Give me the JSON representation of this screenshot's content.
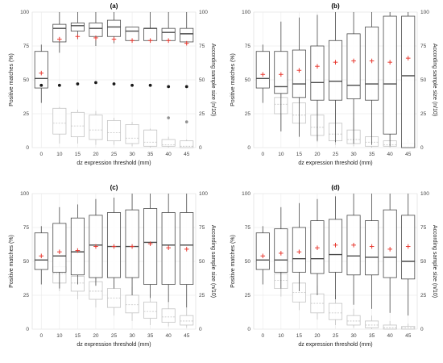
{
  "chart_data": [
    {
      "type": "boxplot",
      "title": "(a)",
      "xlabel": "dz expression threshold (mm)",
      "ylabel": "Positive matches (%)",
      "ylabel_right": "According sample size (n/10)",
      "categories": [
        "0",
        "10",
        "15",
        "20",
        "25",
        "30",
        "35",
        "40",
        "45"
      ],
      "ylim": [
        0,
        100
      ],
      "yticks": [
        "0",
        "25",
        "50",
        "75",
        "100"
      ],
      "grid": true,
      "matches": [
        {
          "q1": 44,
          "median": 51,
          "q3": 71,
          "lo": 33,
          "hi": 76,
          "mean": 55
        },
        {
          "q1": 78,
          "median": 88,
          "q3": 91,
          "lo": 70,
          "hi": 100,
          "mean": 80
        },
        {
          "q1": 86,
          "median": 90,
          "q3": 92,
          "lo": 80,
          "hi": 100,
          "mean": 82
        },
        {
          "q1": 82,
          "median": 88,
          "q3": 92,
          "lo": 75,
          "hi": 100,
          "mean": 81
        },
        {
          "q1": 82,
          "median": 89,
          "q3": 94,
          "lo": 77,
          "hi": 100,
          "mean": 80
        },
        {
          "q1": 79,
          "median": 86,
          "q3": 89,
          "lo": 79,
          "hi": 89,
          "mean": 79
        },
        {
          "q1": 79,
          "median": 88,
          "q3": 88,
          "lo": 79,
          "hi": 100,
          "mean": 79
        },
        {
          "q1": 79,
          "median": 85,
          "q3": 88,
          "lo": 79,
          "hi": 100,
          "mean": 79
        },
        {
          "q1": 78,
          "median": 84,
          "q3": 88,
          "lo": 78,
          "hi": 100,
          "mean": 77
        }
      ],
      "sample_size": [
        {
          "q1": null,
          "median": null,
          "q3": null,
          "lo": null,
          "hi": null,
          "point": 46
        },
        {
          "q1": 10,
          "median": 18,
          "q3": 29,
          "lo": 3,
          "hi": 30,
          "point": 46
        },
        {
          "q1": 8,
          "median": 16,
          "q3": 26,
          "lo": 3,
          "hi": 28,
          "point": 47
        },
        {
          "q1": 6,
          "median": 13,
          "q3": 24,
          "lo": 2,
          "hi": 27,
          "point": 48
        },
        {
          "q1": 5,
          "median": 11,
          "q3": 20,
          "lo": 2,
          "hi": 22,
          "point": 47
        },
        {
          "q1": 3,
          "median": 7,
          "q3": 17,
          "lo": 1,
          "hi": 19,
          "point": 46
        },
        {
          "q1": 1,
          "median": 4,
          "q3": 13,
          "lo": 0,
          "hi": 14,
          "point": 46
        },
        {
          "q1": 1,
          "median": 2,
          "q3": 6,
          "lo": 0,
          "hi": 8,
          "point": 45,
          "outlier": 22
        },
        {
          "q1": 0,
          "median": 1,
          "q3": 5,
          "lo": 0,
          "hi": 6,
          "point": 45,
          "outlier": 19
        }
      ]
    },
    {
      "type": "boxplot",
      "title": "(b)",
      "xlabel": "dz expression threshold (mm)",
      "ylabel": "Positive matches (%)",
      "ylabel_right": "According sample size (n/10)",
      "categories": [
        "0",
        "10",
        "15",
        "20",
        "25",
        "30",
        "35",
        "40",
        "45"
      ],
      "ylim": [
        0,
        100
      ],
      "yticks": [
        "0",
        "25",
        "50",
        "75",
        "100"
      ],
      "grid": true,
      "matches": [
        {
          "q1": 44,
          "median": 51,
          "q3": 71,
          "lo": 33,
          "hi": 76,
          "mean": 54
        },
        {
          "q1": 40,
          "median": 45,
          "q3": 71,
          "lo": 12,
          "hi": 93,
          "mean": 54
        },
        {
          "q1": 37,
          "median": 47,
          "q3": 72,
          "lo": 8,
          "hi": 96,
          "mean": 57
        },
        {
          "q1": 35,
          "median": 48,
          "q3": 75,
          "lo": 5,
          "hi": 98,
          "mean": 60
        },
        {
          "q1": 35,
          "median": 49,
          "q3": 79,
          "lo": 4,
          "hi": 100,
          "mean": 63
        },
        {
          "q1": 36,
          "median": 46,
          "q3": 84,
          "lo": 3,
          "hi": 100,
          "mean": 64
        },
        {
          "q1": 35,
          "median": 47,
          "q3": 89,
          "lo": 2,
          "hi": 100,
          "mean": 64
        },
        {
          "q1": 10,
          "median": 47,
          "q3": 97,
          "lo": 1,
          "hi": 100,
          "mean": 63
        },
        {
          "q1": 0,
          "median": 53,
          "q3": 97,
          "lo": 0,
          "hi": 100,
          "mean": 66
        }
      ],
      "sample_size": [
        {
          "q1": null,
          "median": null,
          "q3": null,
          "lo": null,
          "hi": null
        },
        {
          "q1": 25,
          "median": 32,
          "q3": 37,
          "lo": 12,
          "hi": 45
        },
        {
          "q1": 18,
          "median": 24,
          "q3": 33,
          "lo": 8,
          "hi": 40
        },
        {
          "q1": 9,
          "median": 15,
          "q3": 24,
          "lo": 4,
          "hi": 33
        },
        {
          "q1": 5,
          "median": 10,
          "q3": 18,
          "lo": 2,
          "hi": 28
        },
        {
          "q1": 3,
          "median": 6,
          "q3": 13,
          "lo": 1,
          "hi": 22
        },
        {
          "q1": 1,
          "median": 4,
          "q3": 8,
          "lo": 0,
          "hi": 18
        },
        {
          "q1": 1,
          "median": 2,
          "q3": 5,
          "lo": 0,
          "hi": 10
        },
        {
          "q1": 0,
          "median": 1,
          "q3": 3,
          "lo": 0,
          "hi": 6
        }
      ]
    },
    {
      "type": "boxplot",
      "title": "(c)",
      "xlabel": "dz expression threshold (mm)",
      "ylabel": "Positive matches (%)",
      "ylabel_right": "According sample size (n/10)",
      "categories": [
        "0",
        "10",
        "15",
        "20",
        "25",
        "30",
        "35",
        "40",
        "45"
      ],
      "ylim": [
        0,
        100
      ],
      "yticks": [
        "0",
        "25",
        "50",
        "75",
        "100"
      ],
      "grid": true,
      "matches": [
        {
          "q1": 44,
          "median": 51,
          "q3": 71,
          "lo": 33,
          "hi": 76,
          "mean": 54
        },
        {
          "q1": 42,
          "median": 54,
          "q3": 78,
          "lo": 30,
          "hi": 90,
          "mean": 57
        },
        {
          "q1": 40,
          "median": 57,
          "q3": 82,
          "lo": 33,
          "hi": 92,
          "mean": 58
        },
        {
          "q1": 38,
          "median": 62,
          "q3": 84,
          "lo": 32,
          "hi": 96,
          "mean": 61
        },
        {
          "q1": 38,
          "median": 61,
          "q3": 86,
          "lo": 30,
          "hi": 97,
          "mean": 61
        },
        {
          "q1": 38,
          "median": 61,
          "q3": 88,
          "lo": 25,
          "hi": 100,
          "mean": 61
        },
        {
          "q1": 33,
          "median": 64,
          "q3": 89,
          "lo": 23,
          "hi": 100,
          "mean": 63
        },
        {
          "q1": 33,
          "median": 62,
          "q3": 86,
          "lo": 20,
          "hi": 100,
          "mean": 60
        },
        {
          "q1": 33,
          "median": 62,
          "q3": 86,
          "lo": 16,
          "hi": 100,
          "mean": 59
        }
      ],
      "sample_size": [
        {
          "q1": null,
          "median": null,
          "q3": null,
          "lo": null,
          "hi": null
        },
        {
          "q1": 34,
          "median": 41,
          "q3": 46,
          "lo": 28,
          "hi": 50
        },
        {
          "q1": 28,
          "median": 34,
          "q3": 39,
          "lo": 22,
          "hi": 43
        },
        {
          "q1": 22,
          "median": 28,
          "q3": 35,
          "lo": 16,
          "hi": 40
        },
        {
          "q1": 16,
          "median": 23,
          "q3": 30,
          "lo": 10,
          "hi": 36
        },
        {
          "q1": 12,
          "median": 18,
          "q3": 25,
          "lo": 6,
          "hi": 31
        },
        {
          "q1": 8,
          "median": 13,
          "q3": 20,
          "lo": 3,
          "hi": 26
        },
        {
          "q1": 5,
          "median": 9,
          "q3": 15,
          "lo": 2,
          "hi": 21
        },
        {
          "q1": 3,
          "median": 6,
          "q3": 10,
          "lo": 1,
          "hi": 16
        }
      ]
    },
    {
      "type": "boxplot",
      "title": "(d)",
      "xlabel": "dz expression threshold (mm)",
      "ylabel": "Positive matches (%)",
      "ylabel_right": "According sample size (n/10)",
      "categories": [
        "0",
        "10",
        "15",
        "20",
        "25",
        "30",
        "35",
        "40",
        "45"
      ],
      "ylim": [
        0,
        100
      ],
      "yticks": [
        "0",
        "25",
        "50",
        "75",
        "100"
      ],
      "grid": true,
      "matches": [
        {
          "q1": 44,
          "median": 51,
          "q3": 71,
          "lo": 33,
          "hi": 76,
          "mean": 54
        },
        {
          "q1": 42,
          "median": 51,
          "q3": 74,
          "lo": 30,
          "hi": 90,
          "mean": 56
        },
        {
          "q1": 42,
          "median": 52,
          "q3": 75,
          "lo": 28,
          "hi": 93,
          "mean": 57
        },
        {
          "q1": 41,
          "median": 52,
          "q3": 80,
          "lo": 25,
          "hi": 96,
          "mean": 60
        },
        {
          "q1": 42,
          "median": 55,
          "q3": 81,
          "lo": 22,
          "hi": 98,
          "mean": 62
        },
        {
          "q1": 40,
          "median": 54,
          "q3": 84,
          "lo": 18,
          "hi": 100,
          "mean": 62
        },
        {
          "q1": 40,
          "median": 53,
          "q3": 80,
          "lo": 15,
          "hi": 100,
          "mean": 61
        },
        {
          "q1": 38,
          "median": 53,
          "q3": 88,
          "lo": 12,
          "hi": 100,
          "mean": 59
        },
        {
          "q1": 37,
          "median": 50,
          "q3": 84,
          "lo": 10,
          "hi": 100,
          "mean": 61
        }
      ],
      "sample_size": [
        {
          "q1": null,
          "median": null,
          "q3": null,
          "lo": null,
          "hi": null
        },
        {
          "q1": 30,
          "median": 36,
          "q3": 41,
          "lo": 24,
          "hi": 46
        },
        {
          "q1": 20,
          "median": 27,
          "q3": 34,
          "lo": 14,
          "hi": 40
        },
        {
          "q1": 12,
          "median": 19,
          "q3": 26,
          "lo": 7,
          "hi": 32
        },
        {
          "q1": 7,
          "median": 12,
          "q3": 19,
          "lo": 3,
          "hi": 25
        },
        {
          "q1": 3,
          "median": 6,
          "q3": 10,
          "lo": 1,
          "hi": 15
        },
        {
          "q1": 1,
          "median": 3,
          "q3": 6,
          "lo": 0,
          "hi": 10
        },
        {
          "q1": 0,
          "median": 1,
          "q3": 3,
          "lo": 0,
          "hi": 6
        },
        {
          "q1": 0,
          "median": 1,
          "q3": 2,
          "lo": 0,
          "hi": 4
        }
      ]
    }
  ],
  "colors": {
    "grid": "#ececec",
    "panel_border": "#d8d8d8",
    "box_main": "#4a4a4a",
    "box_sample": "#c4c4c4",
    "mean_marker": "#e8382f",
    "point_marker": "#1a1a1a",
    "outlier_marker": "#909090"
  }
}
